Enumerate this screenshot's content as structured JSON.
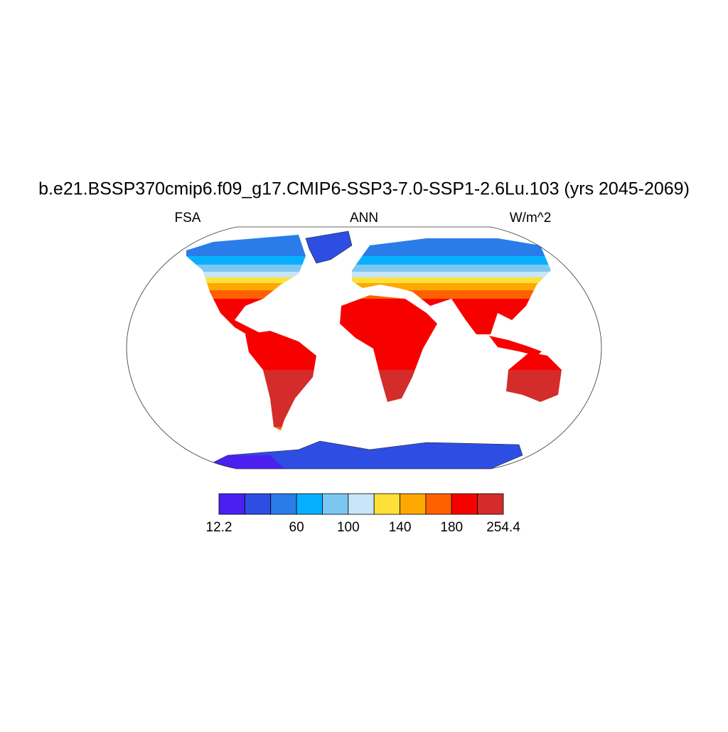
{
  "title": "b.e21.BSSP370cmip6.f09_g17.CMIP6-SSP3-7.0-SSP1-2.6Lu.103 (yrs 2045-2069)",
  "left_label": "FSA",
  "center_label": "ANN",
  "right_label": "W/m^2",
  "colorbar": {
    "colors": [
      "#4a1ff0",
      "#2d4de3",
      "#2a7de8",
      "#07b0ff",
      "#7cc7f2",
      "#c7e6f7",
      "#fde13a",
      "#fda800",
      "#fd6000",
      "#f70000",
      "#d42b2b"
    ],
    "edges": [
      12.2,
      null,
      null,
      60,
      null,
      100,
      null,
      140,
      null,
      180,
      null,
      254.4
    ]
  }
}
